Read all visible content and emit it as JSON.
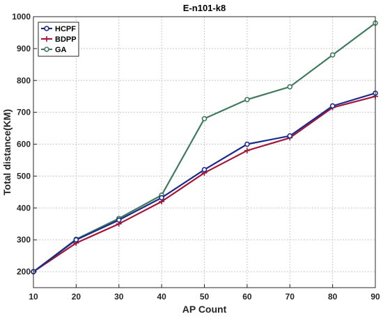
{
  "chart_data": {
    "type": "line",
    "title": "E-n101-k8",
    "xlabel": "AP Count",
    "ylabel": "Total distance(KM)",
    "x": [
      10,
      20,
      30,
      40,
      50,
      60,
      70,
      80,
      90
    ],
    "xlim": [
      10,
      90
    ],
    "ylim": [
      150,
      1000
    ],
    "xticks": [
      10,
      20,
      30,
      40,
      50,
      60,
      70,
      80,
      90
    ],
    "yticks": [
      200,
      300,
      400,
      500,
      600,
      700,
      800,
      900,
      1000
    ],
    "grid": true,
    "legend_position": "top-left",
    "series": [
      {
        "name": "HCPF",
        "color": "#1a2a8a",
        "marker": "circle",
        "values": [
          200,
          300,
          362,
          432,
          520,
          600,
          626,
          720,
          760
        ]
      },
      {
        "name": "BDPP",
        "color": "#a3163a",
        "marker": "plus",
        "values": [
          200,
          290,
          350,
          420,
          510,
          580,
          620,
          715,
          750
        ]
      },
      {
        "name": "GA",
        "color": "#3f7a5c",
        "marker": "circle",
        "values": [
          200,
          302,
          367,
          440,
          680,
          740,
          780,
          880,
          980
        ]
      }
    ]
  }
}
